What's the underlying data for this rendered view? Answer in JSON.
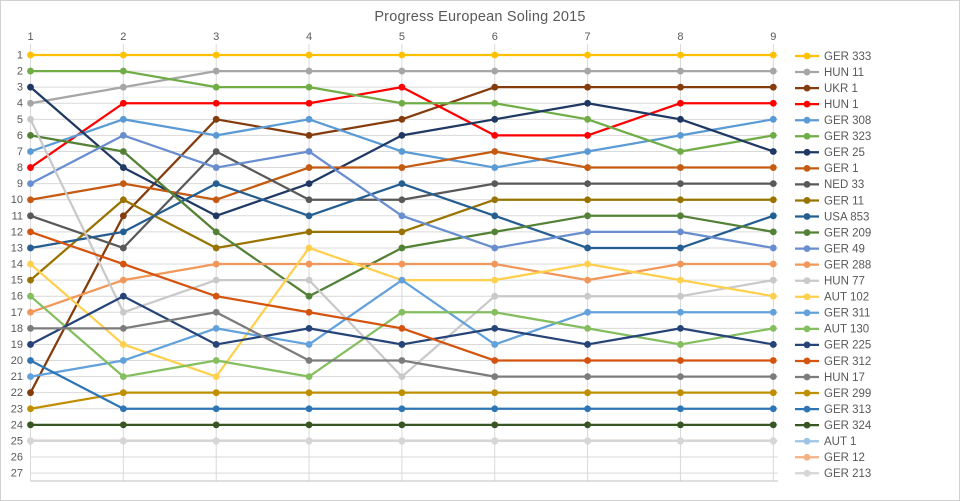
{
  "title": "Progress European Soling 2015",
  "chart_data": {
    "type": "line",
    "variant": "rank-progress-bump-chart",
    "title": "Progress European Soling 2015",
    "xlabel": "",
    "ylabel": "",
    "x_axis": {
      "position": "top",
      "ticks": [
        1,
        2,
        3,
        4,
        5,
        6,
        7,
        8,
        9
      ]
    },
    "y_axis": {
      "position": "left",
      "reversed": true,
      "min": 1,
      "max": 27,
      "ticks": [
        1,
        2,
        3,
        4,
        5,
        6,
        7,
        8,
        9,
        10,
        11,
        12,
        13,
        14,
        15,
        16,
        17,
        18,
        19,
        20,
        21,
        22,
        23,
        24,
        25,
        26,
        27
      ]
    },
    "grid": true,
    "legend_position": "right",
    "categories": [
      1,
      2,
      3,
      4,
      5,
      6,
      7,
      8,
      9
    ],
    "series": [
      {
        "name": "GER 333",
        "color": "#FFC000",
        "ranks": [
          1,
          1,
          1,
          1,
          1,
          1,
          1,
          1,
          1
        ]
      },
      {
        "name": "HUN 11",
        "color": "#A6A6A6",
        "ranks": [
          4,
          3,
          2,
          2,
          2,
          2,
          2,
          2,
          2
        ]
      },
      {
        "name": "UKR 1",
        "color": "#843C0C",
        "ranks": [
          22,
          11,
          5,
          6,
          5,
          3,
          3,
          3,
          3
        ]
      },
      {
        "name": "HUN 1",
        "color": "#FF0000",
        "ranks": [
          8,
          4,
          4,
          4,
          3,
          6,
          6,
          4,
          4
        ]
      },
      {
        "name": "GER 308",
        "color": "#5B9BD5",
        "ranks": [
          7,
          5,
          6,
          5,
          7,
          8,
          7,
          6,
          5
        ]
      },
      {
        "name": "GER 323",
        "color": "#70AD47",
        "ranks": [
          2,
          2,
          3,
          3,
          4,
          4,
          5,
          7,
          6
        ]
      },
      {
        "name": "GER 25",
        "color": "#1F3864",
        "ranks": [
          3,
          8,
          11,
          9,
          6,
          5,
          4,
          5,
          7
        ]
      },
      {
        "name": "GER 1",
        "color": "#C55A11",
        "ranks": [
          10,
          9,
          10,
          8,
          8,
          7,
          8,
          8,
          8
        ]
      },
      {
        "name": "NED 33",
        "color": "#595959",
        "ranks": [
          11,
          13,
          7,
          10,
          10,
          9,
          9,
          9,
          9
        ]
      },
      {
        "name": "GER 11",
        "color": "#997300",
        "ranks": [
          15,
          10,
          13,
          12,
          12,
          10,
          10,
          10,
          10
        ]
      },
      {
        "name": "USA 853",
        "color": "#255E91",
        "ranks": [
          13,
          12,
          9,
          11,
          9,
          11,
          13,
          13,
          11
        ]
      },
      {
        "name": "GER 209",
        "color": "#538135",
        "ranks": [
          6,
          7,
          12,
          16,
          13,
          12,
          11,
          11,
          12
        ]
      },
      {
        "name": "GER 49",
        "color": "#698ED0",
        "ranks": [
          9,
          6,
          8,
          7,
          11,
          13,
          12,
          12,
          13
        ]
      },
      {
        "name": "GER 288",
        "color": "#F1975A",
        "ranks": [
          17,
          15,
          14,
          14,
          14,
          14,
          15,
          14,
          14
        ]
      },
      {
        "name": "HUN 77",
        "color": "#C9C9C9",
        "ranks": [
          5,
          17,
          15,
          15,
          21,
          16,
          16,
          16,
          15
        ]
      },
      {
        "name": "AUT 102",
        "color": "#FFD04D",
        "ranks": [
          14,
          19,
          21,
          13,
          15,
          15,
          14,
          15,
          16
        ]
      },
      {
        "name": "GER 311",
        "color": "#62A1DB",
        "ranks": [
          21,
          20,
          18,
          19,
          15,
          19,
          17,
          17,
          17
        ]
      },
      {
        "name": "AUT 130",
        "color": "#84BE5F",
        "ranks": [
          16,
          21,
          20,
          21,
          17,
          17,
          18,
          19,
          18
        ]
      },
      {
        "name": "GER 225",
        "color": "#264478",
        "ranks": [
          19,
          16,
          19,
          18,
          19,
          18,
          19,
          18,
          19
        ]
      },
      {
        "name": "GER 312",
        "color": "#D4530E",
        "ranks": [
          12,
          14,
          16,
          17,
          18,
          20,
          20,
          20,
          20
        ]
      },
      {
        "name": "HUN 17",
        "color": "#7C7C7C",
        "ranks": [
          18,
          18,
          17,
          20,
          20,
          21,
          21,
          21,
          21
        ]
      },
      {
        "name": "GER 299",
        "color": "#BF8F00",
        "ranks": [
          23,
          22,
          22,
          22,
          22,
          22,
          22,
          22,
          22
        ]
      },
      {
        "name": "GER 313",
        "color": "#2E75B6",
        "ranks": [
          20,
          23,
          23,
          23,
          23,
          23,
          23,
          23,
          23
        ]
      },
      {
        "name": "GER 324",
        "color": "#375623",
        "ranks": [
          24,
          24,
          24,
          24,
          24,
          24,
          24,
          24,
          24
        ]
      },
      {
        "name": "AUT 1",
        "color": "#9DC3E6",
        "ranks": [
          25,
          25,
          25,
          25,
          25,
          25,
          25,
          25,
          25
        ]
      },
      {
        "name": "GER 12",
        "color": "#F4B183",
        "ranks": [
          25,
          25,
          25,
          25,
          25,
          25,
          25,
          25,
          25
        ]
      },
      {
        "name": "GER 213",
        "color": "#D6D6D6",
        "ranks": [
          25,
          25,
          25,
          25,
          25,
          25,
          25,
          25,
          25
        ]
      }
    ],
    "style": {
      "grid_color": "#D9D9D9",
      "axis_text_color": "#595959",
      "title_color": "#595959",
      "line_width": 2.25,
      "marker_radius": 3.4
    }
  }
}
